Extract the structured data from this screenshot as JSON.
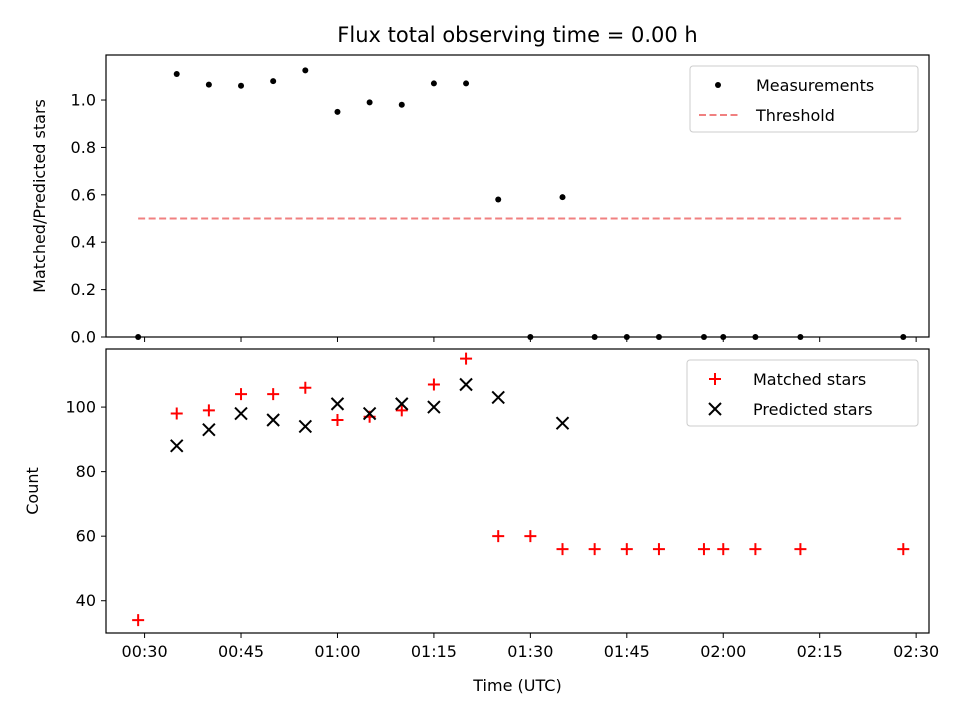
{
  "chart_data": [
    {
      "type": "scatter",
      "title": "Flux total observing time = 0.00 h",
      "xlabel": "",
      "ylabel": "Matched/Predicted stars",
      "ylim": [
        0,
        1.19
      ],
      "yticks": [
        "0.0",
        "0.2",
        "0.4",
        "0.6",
        "0.8",
        "1.0"
      ],
      "xlim": [
        "00:24",
        "02:32"
      ],
      "x_tick_labels_shown": false,
      "legend_position": "top-right",
      "series": [
        {
          "name": "Measurements",
          "marker": "dot",
          "color": "#000000",
          "points": [
            [
              "00:29",
              0.0
            ],
            [
              "00:35",
              1.11
            ],
            [
              "00:40",
              1.065
            ],
            [
              "00:45",
              1.06
            ],
            [
              "00:50",
              1.08
            ],
            [
              "00:55",
              1.125
            ],
            [
              "01:00",
              0.95
            ],
            [
              "01:05",
              0.99
            ],
            [
              "01:10",
              0.98
            ],
            [
              "01:15",
              1.07
            ],
            [
              "01:20",
              1.07
            ],
            [
              "01:25",
              0.58
            ],
            [
              "01:30",
              0.0
            ],
            [
              "01:35",
              0.59
            ],
            [
              "01:40",
              0.0
            ],
            [
              "01:45",
              0.0
            ],
            [
              "01:50",
              0.0
            ],
            [
              "01:57",
              0.0
            ],
            [
              "02:00",
              0.0
            ],
            [
              "02:05",
              0.0
            ],
            [
              "02:12",
              0.0
            ],
            [
              "02:28",
              0.0
            ]
          ]
        },
        {
          "name": "Threshold",
          "marker": "dashed-line",
          "color": "#f08080",
          "points": [
            [
              "00:29",
              0.5
            ],
            [
              "02:28",
              0.5
            ]
          ]
        }
      ]
    },
    {
      "type": "scatter",
      "title": "",
      "xlabel": "Time (UTC)",
      "ylabel": "Count",
      "ylim": [
        30,
        118
      ],
      "yticks": [
        "40",
        "60",
        "80",
        "100"
      ],
      "xlim": [
        "00:24",
        "02:32"
      ],
      "xticks": [
        "00:30",
        "00:45",
        "01:00",
        "01:15",
        "01:30",
        "01:45",
        "02:00",
        "02:15",
        "02:30"
      ],
      "legend_position": "top-right",
      "series": [
        {
          "name": "Matched stars",
          "marker": "plus",
          "color": "#ff0000",
          "points": [
            [
              "00:29",
              34
            ],
            [
              "00:35",
              98
            ],
            [
              "00:40",
              99
            ],
            [
              "00:45",
              104
            ],
            [
              "00:50",
              104
            ],
            [
              "00:55",
              106
            ],
            [
              "01:00",
              96
            ],
            [
              "01:05",
              97
            ],
            [
              "01:10",
              99
            ],
            [
              "01:15",
              107
            ],
            [
              "01:20",
              115
            ],
            [
              "01:25",
              60
            ],
            [
              "01:30",
              60
            ],
            [
              "01:35",
              56
            ],
            [
              "01:40",
              56
            ],
            [
              "01:45",
              56
            ],
            [
              "01:50",
              56
            ],
            [
              "01:57",
              56
            ],
            [
              "02:00",
              56
            ],
            [
              "02:05",
              56
            ],
            [
              "02:12",
              56
            ],
            [
              "02:28",
              56
            ]
          ]
        },
        {
          "name": "Predicted stars",
          "marker": "x",
          "color": "#000000",
          "points": [
            [
              "00:35",
              88
            ],
            [
              "00:40",
              93
            ],
            [
              "00:45",
              98
            ],
            [
              "00:50",
              96
            ],
            [
              "00:55",
              94
            ],
            [
              "01:00",
              101
            ],
            [
              "01:05",
              98
            ],
            [
              "01:10",
              101
            ],
            [
              "01:15",
              100
            ],
            [
              "01:20",
              107
            ],
            [
              "01:25",
              103
            ],
            [
              "01:35",
              95
            ]
          ]
        }
      ]
    }
  ]
}
